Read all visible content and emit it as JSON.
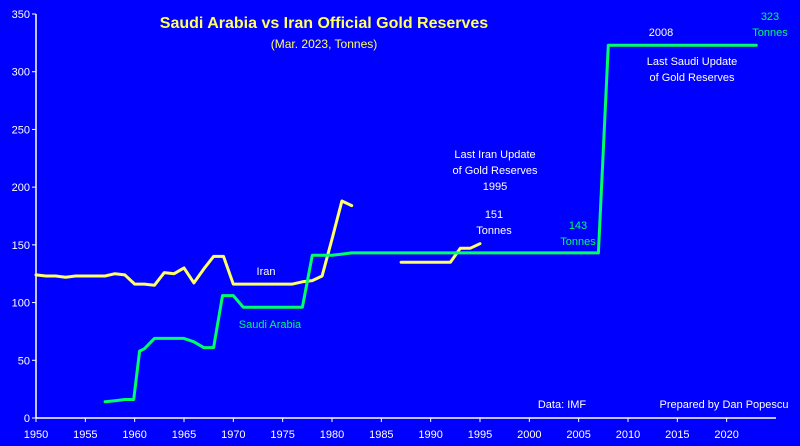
{
  "chart_data": {
    "type": "line",
    "title": "Saudi Arabia vs Iran Official Gold Reserves",
    "subtitle": "(Mar. 2023, Tonnes)",
    "xlabel": "",
    "ylabel": "",
    "xlim": [
      1950,
      2025
    ],
    "ylim": [
      0,
      350
    ],
    "x_ticks": [
      1950,
      1955,
      1960,
      1965,
      1970,
      1975,
      1980,
      1985,
      1990,
      1995,
      2000,
      2005,
      2010,
      2015,
      2020
    ],
    "y_ticks": [
      0,
      50,
      100,
      150,
      200,
      250,
      300,
      350
    ],
    "grid": false,
    "series": [
      {
        "name": "Iran",
        "color": "#ffff66",
        "segments": [
          [
            {
              "x": 1950,
              "y": 124
            },
            {
              "x": 1951,
              "y": 123
            },
            {
              "x": 1952,
              "y": 123
            },
            {
              "x": 1953,
              "y": 122
            },
            {
              "x": 1954,
              "y": 123
            },
            {
              "x": 1955,
              "y": 123
            },
            {
              "x": 1956,
              "y": 123
            },
            {
              "x": 1957,
              "y": 123
            },
            {
              "x": 1958,
              "y": 125
            },
            {
              "x": 1959,
              "y": 124
            },
            {
              "x": 1960,
              "y": 116
            },
            {
              "x": 1961,
              "y": 116
            },
            {
              "x": 1962,
              "y": 115
            },
            {
              "x": 1963,
              "y": 126
            },
            {
              "x": 1964,
              "y": 125
            },
            {
              "x": 1965,
              "y": 130
            },
            {
              "x": 1966,
              "y": 117
            },
            {
              "x": 1967,
              "y": 129
            },
            {
              "x": 1968,
              "y": 140
            },
            {
              "x": 1969,
              "y": 140
            },
            {
              "x": 1970,
              "y": 116
            },
            {
              "x": 1971,
              "y": 116
            },
            {
              "x": 1972,
              "y": 116
            },
            {
              "x": 1973,
              "y": 116
            },
            {
              "x": 1974,
              "y": 116
            },
            {
              "x": 1975,
              "y": 116
            },
            {
              "x": 1976,
              "y": 116
            },
            {
              "x": 1977,
              "y": 118
            },
            {
              "x": 1978,
              "y": 119
            },
            {
              "x": 1979,
              "y": 123
            },
            {
              "x": 1980,
              "y": 155
            },
            {
              "x": 1981,
              "y": 188
            },
            {
              "x": 1982,
              "y": 184
            }
          ],
          [
            {
              "x": 1987,
              "y": 135
            },
            {
              "x": 1988,
              "y": 135
            },
            {
              "x": 1989,
              "y": 135
            },
            {
              "x": 1990,
              "y": 135
            },
            {
              "x": 1991,
              "y": 135
            },
            {
              "x": 1992,
              "y": 135
            },
            {
              "x": 1993,
              "y": 147
            },
            {
              "x": 1994,
              "y": 147
            },
            {
              "x": 1995,
              "y": 151
            }
          ]
        ]
      },
      {
        "name": "Saudi Arabia",
        "color": "#00ff66",
        "segments": [
          [
            {
              "x": 1957,
              "y": 14
            },
            {
              "x": 1958,
              "y": 15
            },
            {
              "x": 1959,
              "y": 16
            },
            {
              "x": 1959.9,
              "y": 16
            },
            {
              "x": 1960.5,
              "y": 58
            },
            {
              "x": 1961,
              "y": 60
            },
            {
              "x": 1962,
              "y": 69
            },
            {
              "x": 1963,
              "y": 69
            },
            {
              "x": 1964,
              "y": 69
            },
            {
              "x": 1965,
              "y": 69
            },
            {
              "x": 1966,
              "y": 66
            },
            {
              "x": 1967,
              "y": 61
            },
            {
              "x": 1968,
              "y": 61
            },
            {
              "x": 1968.9,
              "y": 106
            },
            {
              "x": 1969,
              "y": 106
            },
            {
              "x": 1970,
              "y": 106
            },
            {
              "x": 1971,
              "y": 96
            },
            {
              "x": 1972,
              "y": 96
            },
            {
              "x": 1973,
              "y": 96
            },
            {
              "x": 1974,
              "y": 96
            },
            {
              "x": 1975,
              "y": 96
            },
            {
              "x": 1976,
              "y": 96
            },
            {
              "x": 1977,
              "y": 96
            },
            {
              "x": 1978,
              "y": 141
            },
            {
              "x": 1979,
              "y": 141
            },
            {
              "x": 1980,
              "y": 141
            },
            {
              "x": 1981,
              "y": 142
            },
            {
              "x": 1982,
              "y": 143
            },
            {
              "x": 1990,
              "y": 143
            },
            {
              "x": 2000,
              "y": 143
            },
            {
              "x": 2007,
              "y": 143
            },
            {
              "x": 2008,
              "y": 323
            },
            {
              "x": 2015,
              "y": 323
            },
            {
              "x": 2023,
              "y": 323
            }
          ]
        ]
      }
    ],
    "annotations": {
      "iran_label": "Iran",
      "saudi_label": "Saudi Arabia",
      "iran_update_line1": "Last Iran Update",
      "iran_update_line2": "of Gold Reserves",
      "iran_update_line3": "1995",
      "iran_value_line1": "151",
      "iran_value_line2": "Tonnes",
      "saudi_mid_line1": "143",
      "saudi_mid_line2": "Tonnes",
      "saudi_year": "2008",
      "saudi_update_line1": "Last Saudi Update",
      "saudi_update_line2": "of Gold Reserves",
      "saudi_value_line1": "323",
      "saudi_value_line2": "Tonnes",
      "source": "Data: IMF",
      "credit": "Prepared by Dan Popescu"
    },
    "colors": {
      "background": "#0000ff",
      "axis": "#ffffff",
      "iran": "#ffff66",
      "saudi": "#00ff66",
      "title": "#ffff66"
    }
  }
}
